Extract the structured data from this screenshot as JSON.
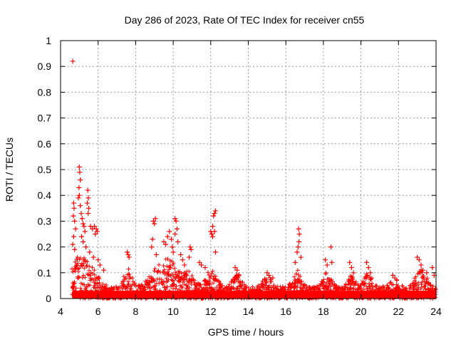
{
  "chart_data": {
    "type": "scatter",
    "title": "Day 286 of 2023, Rate Of TEC Index for receiver cn55",
    "xlabel": "GPS time / hours",
    "ylabel": "ROTI / TECUs",
    "xlim": [
      4,
      24
    ],
    "ylim": [
      0,
      1
    ],
    "x_ticks": [
      "4",
      "6",
      "8",
      "10",
      "12",
      "14",
      "16",
      "18",
      "20",
      "22",
      "24"
    ],
    "y_ticks": [
      "0",
      "0.1",
      "0.2",
      "0.3",
      "0.4",
      "0.5",
      "0.6",
      "0.7",
      "0.8",
      "0.9",
      "1"
    ],
    "grid": true,
    "marker": "+",
    "color": "#ff0000",
    "points": [
      [
        4.65,
        0.92
      ],
      [
        5.0,
        0.51
      ],
      [
        5.02,
        0.49
      ],
      [
        5.05,
        0.46
      ],
      [
        4.98,
        0.43
      ],
      [
        4.95,
        0.39
      ],
      [
        5.0,
        0.4
      ],
      [
        5.05,
        0.36
      ],
      [
        4.7,
        0.37
      ],
      [
        4.72,
        0.35
      ],
      [
        4.68,
        0.32
      ],
      [
        4.75,
        0.3
      ],
      [
        4.8,
        0.27
      ],
      [
        4.7,
        0.24
      ],
      [
        4.65,
        0.21
      ],
      [
        4.75,
        0.19
      ],
      [
        5.1,
        0.33
      ],
      [
        5.15,
        0.31
      ],
      [
        5.2,
        0.29
      ],
      [
        5.25,
        0.28
      ],
      [
        5.3,
        0.26
      ],
      [
        5.12,
        0.24
      ],
      [
        5.2,
        0.22
      ],
      [
        5.45,
        0.42
      ],
      [
        5.48,
        0.39
      ],
      [
        5.42,
        0.37
      ],
      [
        5.5,
        0.35
      ],
      [
        5.47,
        0.33
      ],
      [
        5.6,
        0.28
      ],
      [
        5.7,
        0.27
      ],
      [
        5.8,
        0.28
      ],
      [
        5.9,
        0.27
      ],
      [
        5.95,
        0.26
      ],
      [
        5.85,
        0.25
      ],
      [
        5.35,
        0.2
      ],
      [
        5.55,
        0.18
      ],
      [
        5.75,
        0.16
      ],
      [
        6.0,
        0.15
      ],
      [
        6.1,
        0.13
      ],
      [
        6.3,
        0.11
      ],
      [
        7.55,
        0.18
      ],
      [
        7.6,
        0.17
      ],
      [
        7.65,
        0.16
      ],
      [
        8.95,
        0.3
      ],
      [
        9.0,
        0.29
      ],
      [
        9.05,
        0.31
      ],
      [
        8.9,
        0.23
      ],
      [
        8.85,
        0.2
      ],
      [
        9.1,
        0.17
      ],
      [
        9.5,
        0.22
      ],
      [
        9.6,
        0.21
      ],
      [
        9.7,
        0.24
      ],
      [
        9.8,
        0.26
      ],
      [
        9.9,
        0.23
      ],
      [
        9.95,
        0.2
      ],
      [
        10.0,
        0.18
      ],
      [
        10.1,
        0.31
      ],
      [
        10.15,
        0.3
      ],
      [
        10.2,
        0.27
      ],
      [
        10.1,
        0.25
      ],
      [
        10.25,
        0.22
      ],
      [
        10.4,
        0.17
      ],
      [
        10.5,
        0.15
      ],
      [
        10.6,
        0.13
      ],
      [
        10.9,
        0.2
      ],
      [
        10.95,
        0.19
      ],
      [
        10.85,
        0.16
      ],
      [
        11.4,
        0.14
      ],
      [
        11.5,
        0.13
      ],
      [
        11.7,
        0.12
      ],
      [
        12.0,
        0.26
      ],
      [
        12.05,
        0.25
      ],
      [
        12.1,
        0.24
      ],
      [
        12.15,
        0.32
      ],
      [
        12.2,
        0.33
      ],
      [
        12.25,
        0.34
      ],
      [
        12.1,
        0.28
      ],
      [
        12.2,
        0.26
      ],
      [
        12.25,
        0.18
      ],
      [
        13.3,
        0.12
      ],
      [
        13.4,
        0.11
      ],
      [
        13.5,
        0.09
      ],
      [
        15.0,
        0.1
      ],
      [
        15.1,
        0.09
      ],
      [
        15.3,
        0.08
      ],
      [
        16.5,
        0.14
      ],
      [
        16.6,
        0.18
      ],
      [
        16.65,
        0.2
      ],
      [
        16.7,
        0.22
      ],
      [
        16.72,
        0.25
      ],
      [
        16.68,
        0.27
      ],
      [
        16.8,
        0.16
      ],
      [
        18.1,
        0.15
      ],
      [
        18.2,
        0.13
      ],
      [
        18.4,
        0.2
      ],
      [
        18.45,
        0.14
      ],
      [
        19.4,
        0.14
      ],
      [
        19.5,
        0.12
      ],
      [
        19.6,
        0.1
      ],
      [
        20.3,
        0.14
      ],
      [
        20.4,
        0.12
      ],
      [
        20.5,
        0.1
      ],
      [
        21.7,
        0.09
      ],
      [
        21.8,
        0.08
      ],
      [
        23.0,
        0.16
      ],
      [
        23.1,
        0.15
      ],
      [
        23.2,
        0.13
      ],
      [
        23.3,
        0.11
      ],
      [
        23.5,
        0.1
      ],
      [
        23.8,
        0.12
      ],
      [
        23.9,
        0.09
      ]
    ]
  }
}
